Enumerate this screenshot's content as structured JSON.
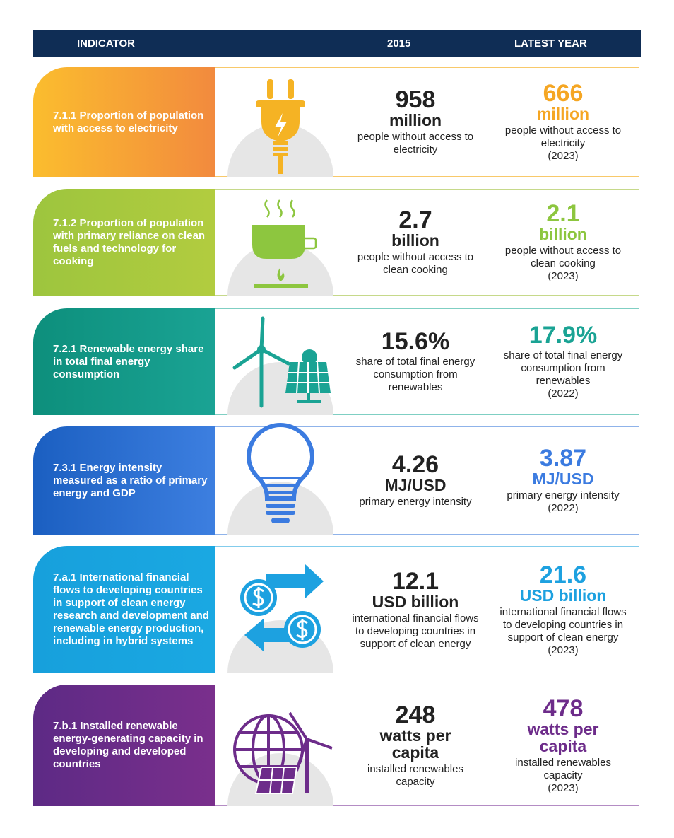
{
  "header": {
    "indicator": "INDICATOR",
    "col_2015": "2015",
    "col_latest": "LATEST YEAR"
  },
  "rows": [
    {
      "indicator": "7.1.1 Proportion of population with access to electricity",
      "v2015": {
        "number": "958",
        "unit": "million",
        "description": "people without access to electricity"
      },
      "latest": {
        "number": "666",
        "unit": "million",
        "description": "people without access to electricity",
        "year": "(2023)"
      }
    },
    {
      "indicator": "7.1.2 Proportion of population with primary reliance on clean fuels and technology for cooking",
      "v2015": {
        "number": "2.7",
        "unit": "billion",
        "description": "people without access to clean cooking"
      },
      "latest": {
        "number": "2.1",
        "unit": "billion",
        "description": "people without access to clean cooking",
        "year": "(2023)"
      }
    },
    {
      "indicator": "7.2.1 Renewable energy share in total final energy consumption",
      "v2015": {
        "number": "15.6%",
        "description": "share of total final energy consumption from renewables"
      },
      "latest": {
        "number": "17.9%",
        "description": "share of total final energy consumption from renewables",
        "year": "(2022)"
      }
    },
    {
      "indicator": "7.3.1 Energy intensity measured as a ratio of primary energy and GDP",
      "v2015": {
        "number": "4.26",
        "unit": "MJ/USD",
        "description": "primary energy intensity"
      },
      "latest": {
        "number": "3.87",
        "unit": "MJ/USD",
        "description": "primary energy intensity",
        "year": "(2022)"
      }
    },
    {
      "indicator": "7.a.1 International financial flows to developing countries in support of clean energy research and development and renewable energy production, including in hybrid systems",
      "v2015": {
        "number": "12.1",
        "unit": "USD billion",
        "description": "international financial flows to developing countries in support of clean energy"
      },
      "latest": {
        "number": "21.6",
        "unit": "USD billion",
        "description": "international financial flows to developing countries in support of clean energy",
        "year": "(2023)"
      }
    },
    {
      "indicator": "7.b.1 Installed renewable energy-generating capacity in developing and developed countries",
      "v2015": {
        "number": "248",
        "unit": "watts per capita",
        "description": "installed renewables capacity"
      },
      "latest": {
        "number": "478",
        "unit": "watts per capita",
        "description": "installed renewables capacity",
        "year": "(2023)"
      }
    }
  ]
}
